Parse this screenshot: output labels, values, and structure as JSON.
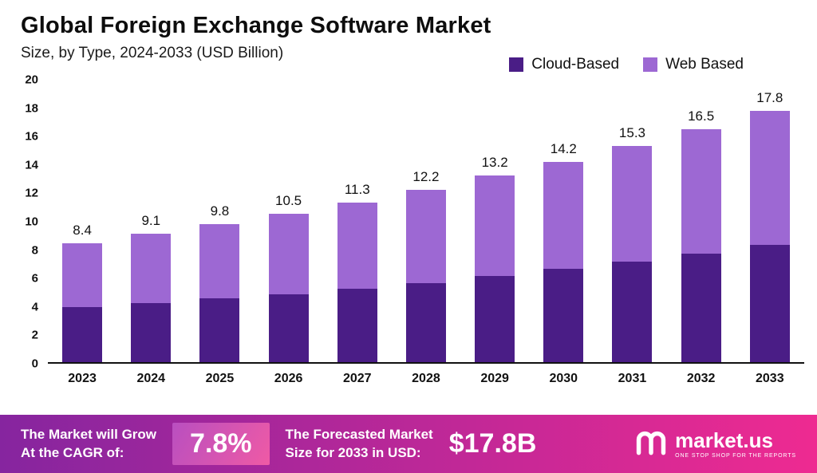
{
  "header": {
    "title": "Global Foreign Exchange Software Market",
    "subtitle": "Size, by Type, 2024-2033 (USD Billion)"
  },
  "legend": [
    {
      "label": "Cloud-Based",
      "color": "#4a1d86"
    },
    {
      "label": "Web Based",
      "color": "#9d68d3"
    }
  ],
  "chart_data": {
    "type": "bar",
    "stacked": true,
    "title": "Global Foreign Exchange Software Market Size, by Type, 2024-2033 (USD Billion)",
    "categories": [
      "2023",
      "2024",
      "2025",
      "2026",
      "2027",
      "2028",
      "2029",
      "2030",
      "2031",
      "2032",
      "2033"
    ],
    "series": [
      {
        "name": "Cloud-Based",
        "color": "#4a1d86",
        "values": [
          3.9,
          4.2,
          4.5,
          4.8,
          5.2,
          5.6,
          6.1,
          6.6,
          7.1,
          7.7,
          8.3
        ]
      },
      {
        "name": "Web Based",
        "color": "#9d68d3",
        "values": [
          4.5,
          4.9,
          5.3,
          5.7,
          6.1,
          6.6,
          7.1,
          7.6,
          8.2,
          8.8,
          9.5
        ]
      }
    ],
    "totals": [
      "8.4",
      "9.1",
      "9.8",
      "10.5",
      "11.3",
      "12.2",
      "13.2",
      "14.2",
      "15.3",
      "16.5",
      "17.8"
    ],
    "xlabel": "",
    "ylabel": "",
    "ylim": [
      0,
      20
    ],
    "yticks": [
      0,
      2,
      4,
      6,
      8,
      10,
      12,
      14,
      16,
      18,
      20
    ],
    "grid": false,
    "legend_position": "top-right"
  },
  "footer": {
    "gradient_start": "#86259f",
    "gradient_end": "#ee2a91",
    "panel_gradient_start": "#b94fc0",
    "panel_gradient_end": "#ef5aa5",
    "cagr_label_line1": "The Market will Grow",
    "cagr_label_line2": "At the CAGR of:",
    "cagr_value": "7.8%",
    "forecast_label_line1": "The Forecasted Market",
    "forecast_label_line2": "Size for 2033 in USD:",
    "forecast_value": "$17.8B",
    "brand_name": "market.us",
    "brand_tagline": "ONE STOP SHOP FOR THE REPORTS"
  }
}
